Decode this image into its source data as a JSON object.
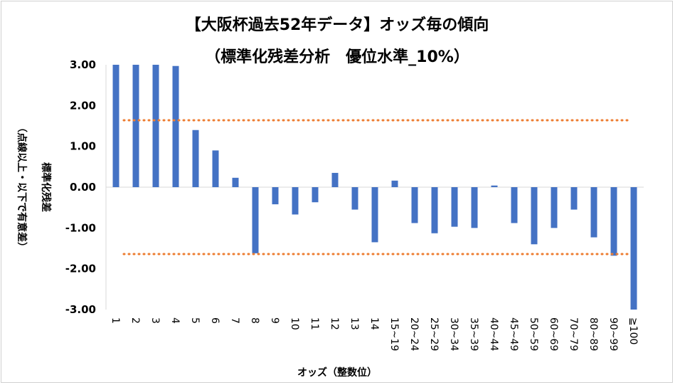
{
  "chart_data": {
    "type": "bar",
    "title": "【大阪杯過去52年データ】オッズ毎の傾向",
    "subtitle": "（標準化残差分析　優位水準_10%）",
    "xlabel": "オッズ（整数位）",
    "ylabel": "標準化残差",
    "ylabel_note": "（点線以上・以下で有意差）",
    "ylim": [
      -3.0,
      3.0
    ],
    "yticks": [
      "3.00",
      "2.00",
      "1.00",
      "0.00",
      "-1.00",
      "-2.00",
      "-3.00"
    ],
    "ytick_values": [
      3,
      2,
      1,
      0,
      -1,
      -2,
      -3
    ],
    "categories": [
      "1",
      "2",
      "3",
      "4",
      "5",
      "6",
      "7",
      "8",
      "9",
      "10",
      "11",
      "12",
      "13",
      "14",
      "15~19",
      "20~24",
      "25~29",
      "30~34",
      "35~39",
      "40~44",
      "45~49",
      "50~59",
      "60~69",
      "70~79",
      "80~89",
      "90~99",
      "≧100"
    ],
    "values": [
      3.0,
      3.0,
      3.0,
      2.97,
      1.4,
      0.9,
      0.23,
      -1.62,
      -0.42,
      -0.67,
      -0.37,
      0.35,
      -0.55,
      -1.35,
      0.16,
      -0.88,
      -1.13,
      -0.97,
      -1.0,
      0.04,
      -0.88,
      -1.4,
      -1.0,
      -0.55,
      -1.23,
      -1.68,
      -3.0
    ],
    "threshold_lines": [
      1.64,
      -1.64
    ],
    "grid": false,
    "legend": "none",
    "colors": {
      "bar": "#4472c4",
      "threshold": "#ed7d31",
      "axis": "#d9d9d9"
    }
  }
}
